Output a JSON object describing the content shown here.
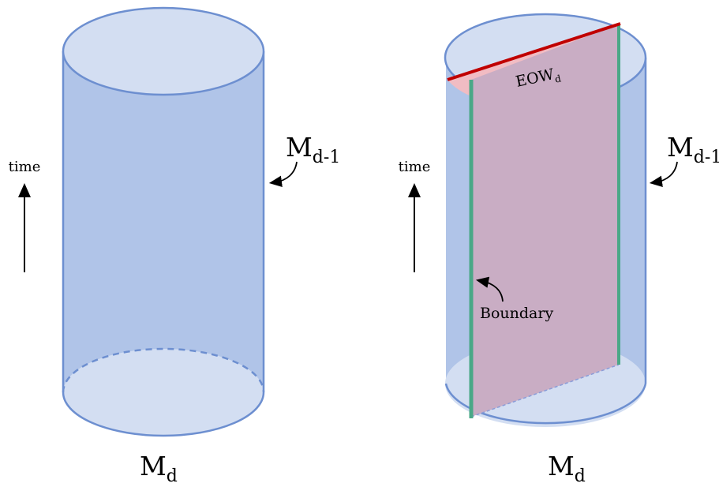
{
  "left": {
    "time_label": "time",
    "boundary_manifold": {
      "base": "M",
      "sub": "d-1"
    },
    "bulk_manifold": {
      "base": "M",
      "sub": "d"
    }
  },
  "right": {
    "time_label": "time",
    "boundary_manifold": {
      "base": "M",
      "sub": "d-1"
    },
    "bulk_manifold": {
      "base": "M",
      "sub": "d"
    },
    "eow_label": {
      "base": "EOW",
      "sub": "d"
    },
    "boundary_label": "Boundary"
  },
  "colors": {
    "cylinder_fill": "#b0c4e8",
    "cap_fill": "#d3def2",
    "outline": "#6d8fd0",
    "eow_region": "#c9adc4",
    "eow_top": "#f1bcc3",
    "eow_edge": "#c00000",
    "boundary_edge": "#4aa887"
  }
}
